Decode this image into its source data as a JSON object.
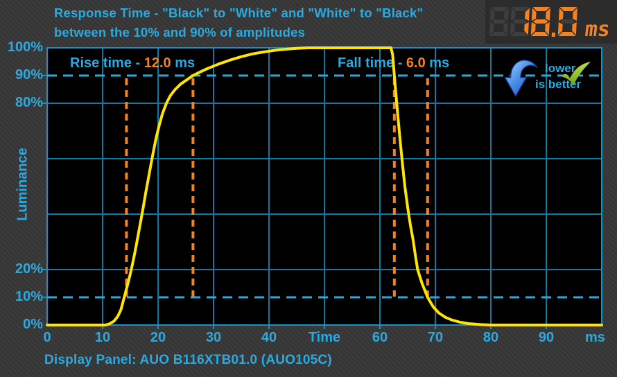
{
  "title": {
    "line1": "Response Time - \"Black\" to \"White\" and \"White\" to \"Black\"",
    "line2": "between the 10% and 90% of amplitudes"
  },
  "display": {
    "value": "18.0",
    "unit": "ms",
    "ghost_digits": 1
  },
  "annotations": {
    "rise": {
      "prefix": "Rise time - ",
      "value": "12.0",
      "unit": " ms"
    },
    "fall": {
      "prefix": "Fall time - ",
      "value": "6.0",
      "unit": " ms"
    },
    "badge": {
      "line1": "lower",
      "line2": "is better"
    }
  },
  "caption": "Display Panel: AUO B116XTB01.0 (AUO105C)",
  "colors": {
    "accent_cyan": "#29abe2",
    "grid": "#0d7ba3",
    "border": "#1593c6",
    "curve_yellow": "#ffe500",
    "orange": "#f58220",
    "plot_bg": "#000000",
    "page_bg": "#383838",
    "panel_bg": "#2c2c2c",
    "ghost_segment": "#3e3e3e",
    "check_green": "#8cc63e",
    "arrow_blue": "#3d7de0"
  },
  "chart_data": {
    "type": "line",
    "title": "Response Time - Black to White and White to Black between the 10% and 90% of amplitudes",
    "xlabel": "Time (ms)",
    "ylabel": "Luminance",
    "xlim": [
      0,
      100
    ],
    "ylim": [
      0,
      100
    ],
    "grid_x_step_ms": 10,
    "grid_y_step_pct": 20,
    "threshold_lines_pct": [
      90,
      10
    ],
    "rise_markers_ms": [
      14.3,
      26.3
    ],
    "fall_markers_ms": [
      62.6,
      68.6
    ],
    "rise_time_ms": 12.0,
    "fall_time_ms": 6.0,
    "total_response_ms": 18.0,
    "x_ticks": [
      {
        "t": 0,
        "label": "0"
      },
      {
        "t": 10,
        "label": "10"
      },
      {
        "t": 20,
        "label": "20"
      },
      {
        "t": 30,
        "label": "30"
      },
      {
        "t": 40,
        "label": "40"
      },
      {
        "t": 50,
        "label": "Time"
      },
      {
        "t": 60,
        "label": "60"
      },
      {
        "t": 70,
        "label": "70"
      },
      {
        "t": 80,
        "label": "80"
      },
      {
        "t": 90,
        "label": "90"
      },
      {
        "t": 98.8,
        "label": "ms"
      }
    ],
    "y_ticks": [
      {
        "p": 100,
        "label": "100%"
      },
      {
        "p": 90,
        "label": "90%"
      },
      {
        "p": 80,
        "label": "80%"
      },
      {
        "p": 20,
        "label": "20%"
      },
      {
        "p": 10,
        "label": "10%"
      },
      {
        "p": 0,
        "label": "0%"
      }
    ],
    "series": [
      {
        "name": "Luminance",
        "points": [
          [
            0,
            0
          ],
          [
            10.5,
            0
          ],
          [
            11.2,
            0.4
          ],
          [
            12,
            1.3
          ],
          [
            12.7,
            3
          ],
          [
            13.3,
            5.5
          ],
          [
            13.9,
            10
          ],
          [
            14.5,
            14.5
          ],
          [
            15,
            18.5
          ],
          [
            15.5,
            23
          ],
          [
            16,
            28
          ],
          [
            16.6,
            34.5
          ],
          [
            17.2,
            41
          ],
          [
            17.8,
            48
          ],
          [
            18.4,
            54.5
          ],
          [
            19,
            61
          ],
          [
            19.6,
            67
          ],
          [
            20.2,
            72
          ],
          [
            20.8,
            76.3
          ],
          [
            21.5,
            80
          ],
          [
            22.2,
            82.7
          ],
          [
            23,
            84.8
          ],
          [
            24,
            86.8
          ],
          [
            25,
            88.2
          ],
          [
            26.3,
            90
          ],
          [
            27.5,
            91.2
          ],
          [
            29,
            92.6
          ],
          [
            31,
            94.2
          ],
          [
            33,
            95.6
          ],
          [
            35,
            96.8
          ],
          [
            37,
            97.8
          ],
          [
            39,
            98.5
          ],
          [
            41,
            99.1
          ],
          [
            43,
            99.5
          ],
          [
            45,
            99.8
          ],
          [
            47,
            100
          ],
          [
            62,
            100
          ],
          [
            62.3,
            97.5
          ],
          [
            62.6,
            90
          ],
          [
            62.9,
            83
          ],
          [
            63.3,
            74
          ],
          [
            63.7,
            65.5
          ],
          [
            64.1,
            57.5
          ],
          [
            64.5,
            50
          ],
          [
            65,
            42.5
          ],
          [
            65.5,
            36
          ],
          [
            66,
            30.5
          ],
          [
            66.4,
            25
          ],
          [
            66.8,
            20
          ],
          [
            67.6,
            15
          ],
          [
            68.6,
            10
          ],
          [
            69.6,
            6.6
          ],
          [
            70.6,
            4.4
          ],
          [
            71.8,
            2.8
          ],
          [
            73,
            1.8
          ],
          [
            74.5,
            1
          ],
          [
            76,
            0.5
          ],
          [
            78,
            0.2
          ],
          [
            80,
            0
          ],
          [
            100,
            0
          ]
        ]
      }
    ]
  }
}
